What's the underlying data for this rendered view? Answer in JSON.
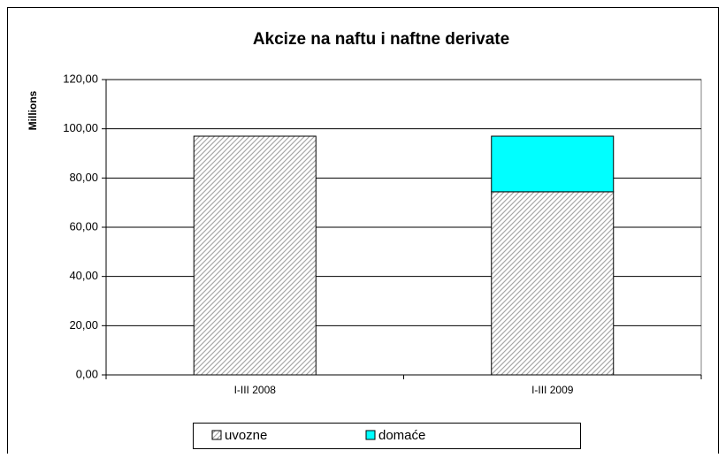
{
  "chart_data": {
    "type": "bar",
    "stacked": true,
    "title": "Akcize na naftu i naftne derivate",
    "y_label": "Millions",
    "categories": [
      "I-III 2008",
      "I-III 2009"
    ],
    "series": [
      {
        "name": "uvozne",
        "color": "#a0a0a0",
        "pattern": "diagonal-hatch",
        "values": [
          97.0,
          74.4
        ]
      },
      {
        "name": "domaće",
        "color": "#00ffff",
        "values": [
          0,
          22.6
        ]
      }
    ],
    "ylim": [
      0,
      120
    ],
    "yticks": [
      {
        "value": 0,
        "label": "0,00"
      },
      {
        "value": 20,
        "label": "20,00"
      },
      {
        "value": 40,
        "label": "40,00"
      },
      {
        "value": 60,
        "label": "60,00"
      },
      {
        "value": 80,
        "label": "80,00"
      },
      {
        "value": 100,
        "label": "100,00"
      },
      {
        "value": 120,
        "label": "120,00"
      }
    ],
    "grid": true,
    "legend": "bottom"
  }
}
